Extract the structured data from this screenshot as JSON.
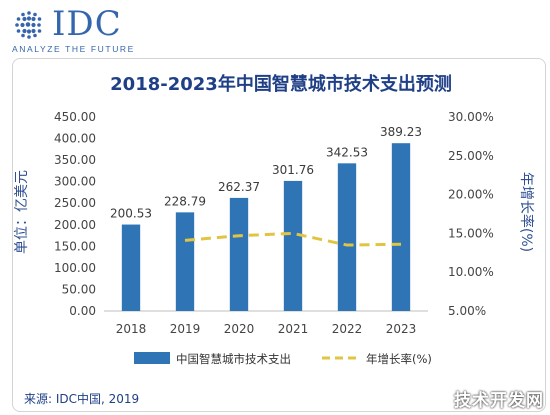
{
  "header": {
    "logo_text": "IDC",
    "tagline": "ANALYZE THE FUTURE"
  },
  "watermark": "技术开发网",
  "source": "来源: IDC中国, 2019",
  "colors": {
    "bar": "#2f74b5",
    "line": "#e2c443",
    "title": "#1f3f86",
    "brand": "#3566ad"
  },
  "chart_data": {
    "type": "bar",
    "title": "2018-2023年中国智慧城市技术支出预测",
    "ylabel": "单位：亿美元",
    "y2label": "年增长率(%)",
    "categories": [
      "2018",
      "2019",
      "2020",
      "2021",
      "2022",
      "2023"
    ],
    "ylim": [
      0,
      450
    ],
    "yticks": [
      "0.00",
      "50.00",
      "100.00",
      "150.00",
      "200.00",
      "250.00",
      "300.00",
      "350.00",
      "400.00",
      "450.00"
    ],
    "y2lim": [
      5,
      30
    ],
    "y2ticks": [
      "5.00%",
      "10.00%",
      "15.00%",
      "20.00%",
      "25.00%",
      "30.00%"
    ],
    "grid": false,
    "legend_position": "bottom",
    "series": [
      {
        "name": "中国智慧城市技术支出",
        "type": "bar",
        "axis": "left",
        "values": [
          200.53,
          228.79,
          262.37,
          301.76,
          342.53,
          389.23
        ],
        "labels": [
          "200.53",
          "228.79",
          "262.37",
          "301.76",
          "342.53",
          "389.23"
        ]
      },
      {
        "name": "年增长率(%)",
        "type": "line",
        "style": "dashed",
        "axis": "right",
        "x": [
          "2019",
          "2020",
          "2021",
          "2022",
          "2023"
        ],
        "values": [
          14.1,
          14.7,
          15.0,
          13.5,
          13.6
        ]
      }
    ]
  }
}
